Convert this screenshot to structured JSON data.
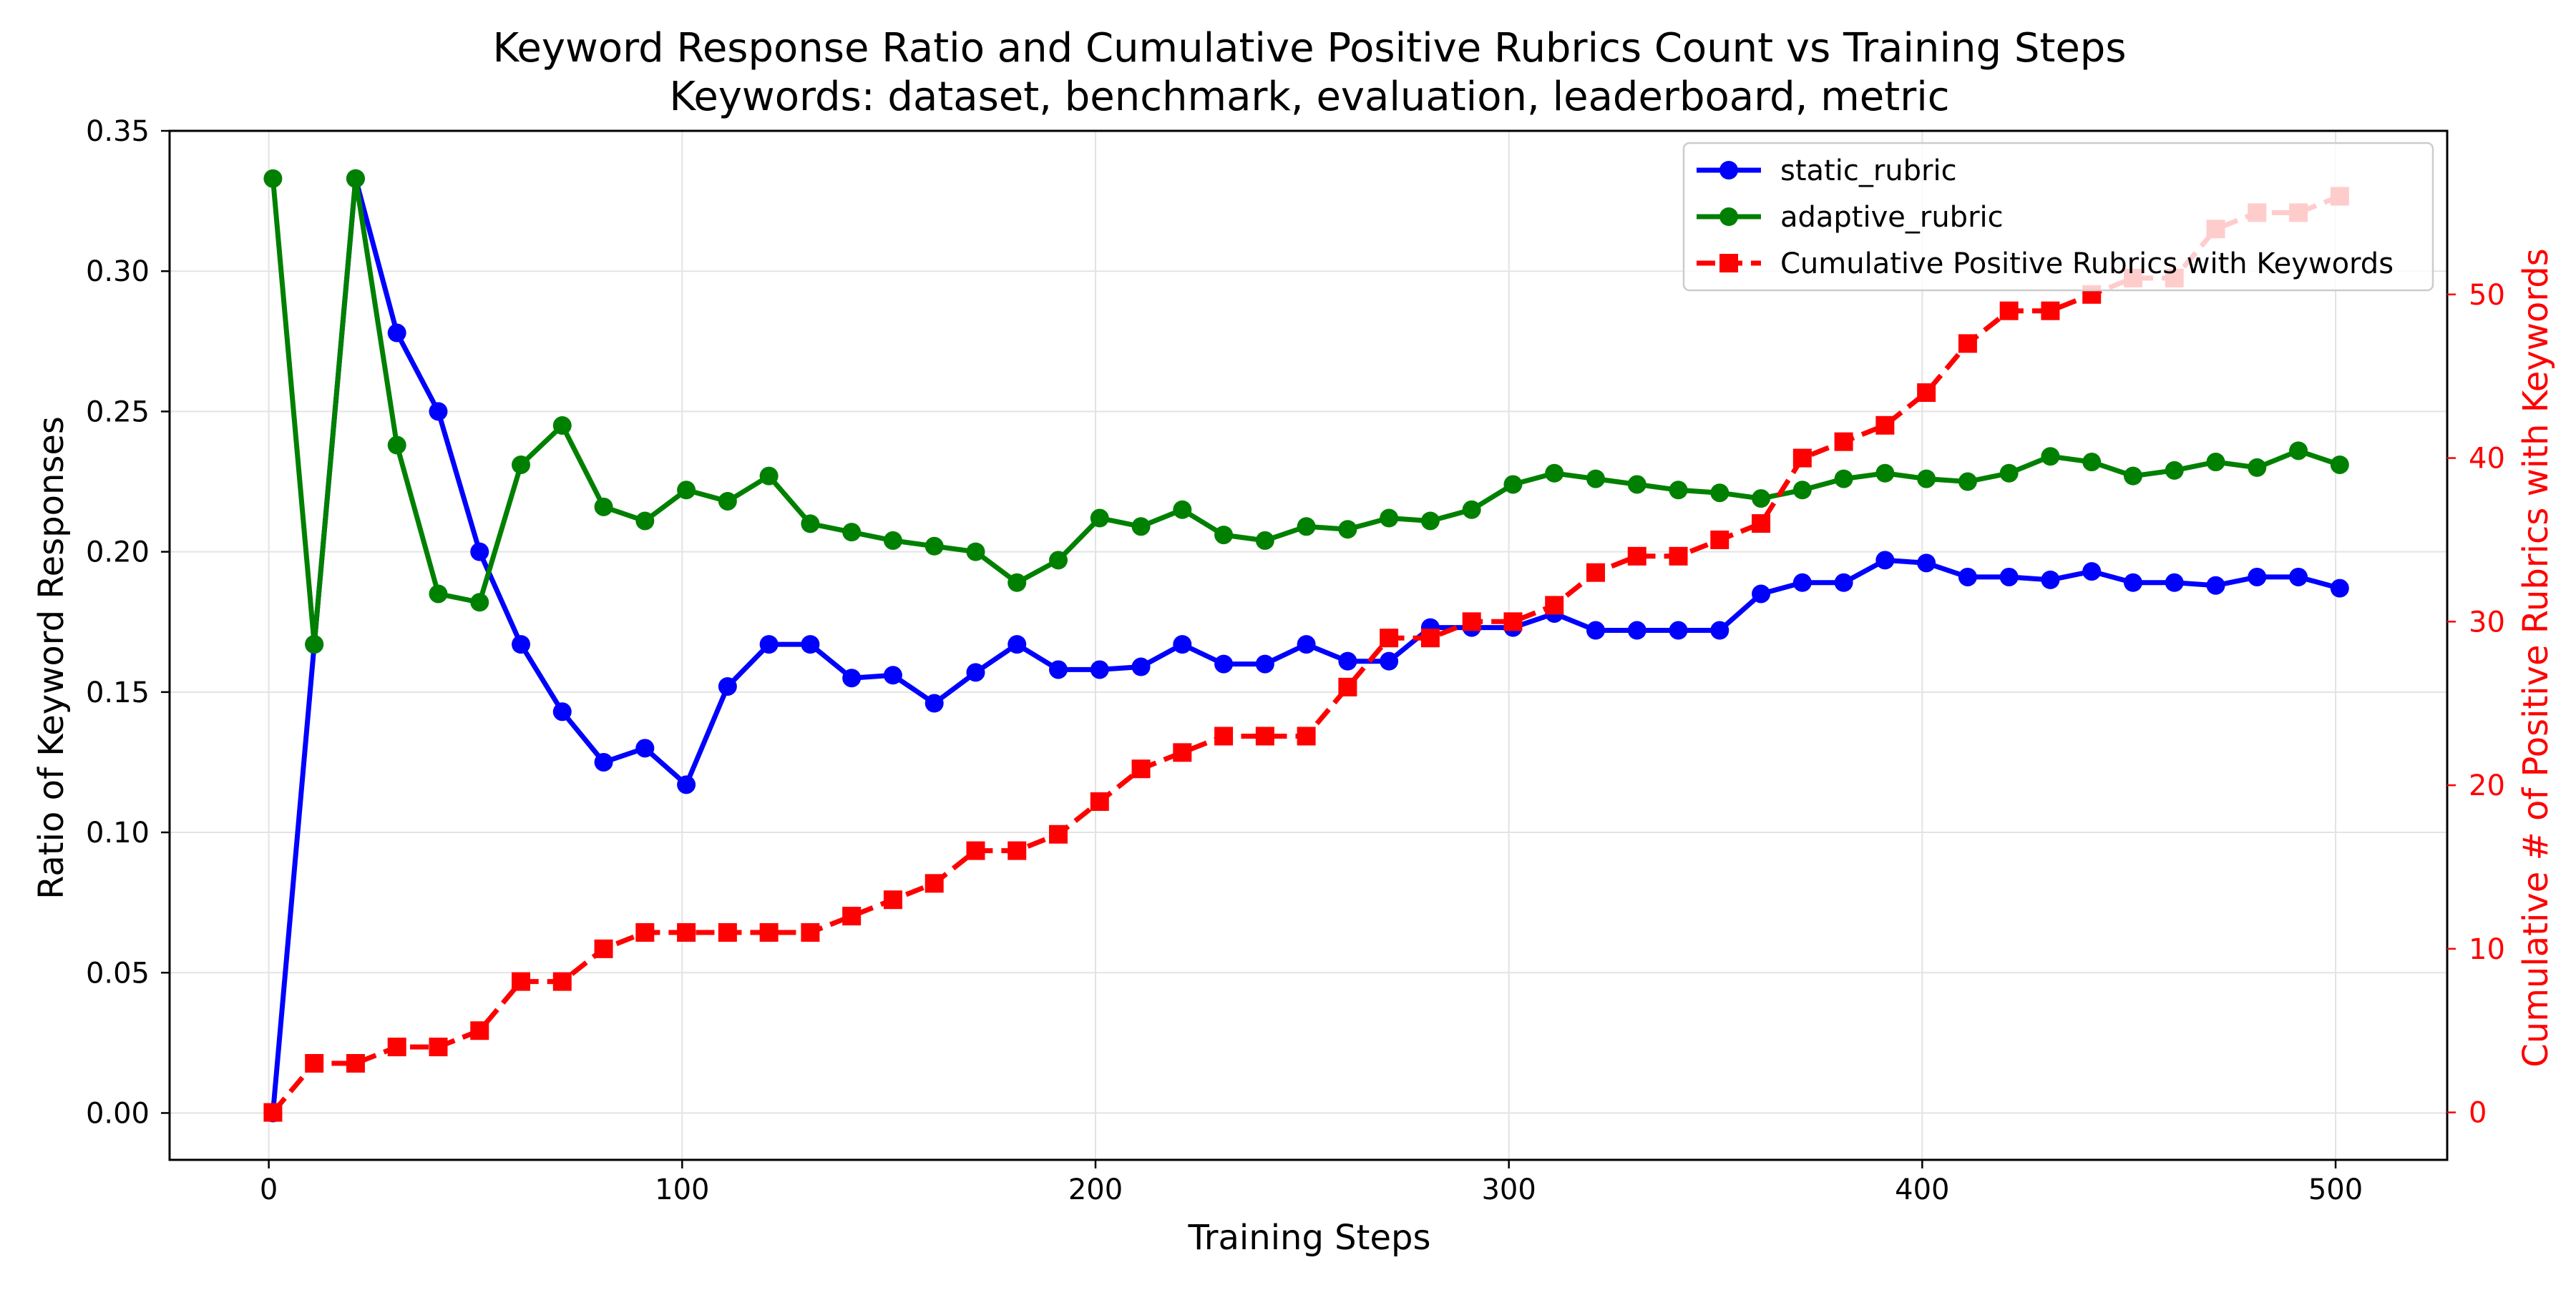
{
  "chart_data": {
    "type": "line",
    "title": "Keyword Response Ratio and Cumulative Positive Rubrics Count vs Training Steps",
    "subtitle": "Keywords: dataset, benchmark, evaluation, leaderboard, metric",
    "xlabel": "Training Steps",
    "ylabel_left": "Ratio of Keyword Responses",
    "ylabel_right": "Cumulative # of Positive Rubrics with Keywords",
    "xlim": [
      -24,
      527
    ],
    "ylim_left": [
      -0.0167,
      0.35
    ],
    "ylim_right": [
      -2.9,
      60
    ],
    "x_ticks": [
      0,
      100,
      200,
      300,
      400,
      500
    ],
    "y_ticks_left": [
      0.0,
      0.05,
      0.1,
      0.15,
      0.2,
      0.25,
      0.3,
      0.35
    ],
    "y_ticks_right": [
      0,
      10,
      20,
      30,
      40,
      50
    ],
    "grid": true,
    "legend_position": "top-right",
    "x": [
      1,
      11,
      21,
      31,
      41,
      51,
      61,
      71,
      81,
      91,
      101,
      111,
      121,
      131,
      141,
      151,
      161,
      171,
      181,
      191,
      201,
      211,
      221,
      231,
      241,
      251,
      261,
      271,
      281,
      291,
      301,
      311,
      321,
      331,
      341,
      351,
      361,
      371,
      381,
      391,
      401,
      411,
      421,
      431,
      441,
      451,
      461,
      471,
      481,
      491,
      501
    ],
    "series": [
      {
        "name": "static_rubric",
        "axis": "left",
        "color": "#0000ff",
        "style": "solid",
        "marker": "circle",
        "values": [
          0.0,
          0.167,
          0.333,
          0.278,
          0.25,
          0.2,
          0.167,
          0.143,
          0.125,
          0.13,
          0.117,
          0.152,
          0.167,
          0.167,
          0.155,
          0.156,
          0.146,
          0.157,
          0.167,
          0.158,
          0.158,
          0.159,
          0.167,
          0.16,
          0.16,
          0.167,
          0.161,
          0.161,
          0.173,
          0.173,
          0.173,
          0.178,
          0.172,
          0.172,
          0.172,
          0.172,
          0.185,
          0.189,
          0.189,
          0.197,
          0.196,
          0.191,
          0.191,
          0.19,
          0.193,
          0.189,
          0.189,
          0.188,
          0.191,
          0.191,
          0.187
        ]
      },
      {
        "name": "adaptive_rubric",
        "axis": "left",
        "color": "#008000",
        "style": "solid",
        "marker": "circle",
        "values": [
          0.333,
          0.167,
          0.333,
          0.238,
          0.185,
          0.182,
          0.231,
          0.245,
          0.216,
          0.211,
          0.222,
          0.218,
          0.227,
          0.21,
          0.207,
          0.204,
          0.202,
          0.2,
          0.189,
          0.197,
          0.212,
          0.209,
          0.215,
          0.206,
          0.204,
          0.209,
          0.208,
          0.212,
          0.211,
          0.215,
          0.224,
          0.228,
          0.226,
          0.224,
          0.222,
          0.221,
          0.219,
          0.222,
          0.226,
          0.228,
          0.226,
          0.225,
          0.228,
          0.234,
          0.232,
          0.227,
          0.229,
          0.232,
          0.23,
          0.236,
          0.231
        ]
      },
      {
        "name": "Cumulative Positive Rubrics with Keywords",
        "axis": "right",
        "color": "#ff0000",
        "style": "dashed",
        "marker": "square",
        "values": [
          0,
          3,
          3,
          4,
          4,
          5,
          8,
          8,
          10,
          11,
          11,
          11,
          11,
          11,
          12,
          13,
          14,
          16,
          16,
          17,
          19,
          21,
          22,
          23,
          23,
          23,
          26,
          29,
          29,
          30,
          30,
          31,
          33,
          34,
          34,
          35,
          36,
          40,
          41,
          42,
          44,
          47,
          49,
          49,
          50,
          51,
          51,
          54,
          55,
          55,
          56
        ]
      }
    ]
  }
}
